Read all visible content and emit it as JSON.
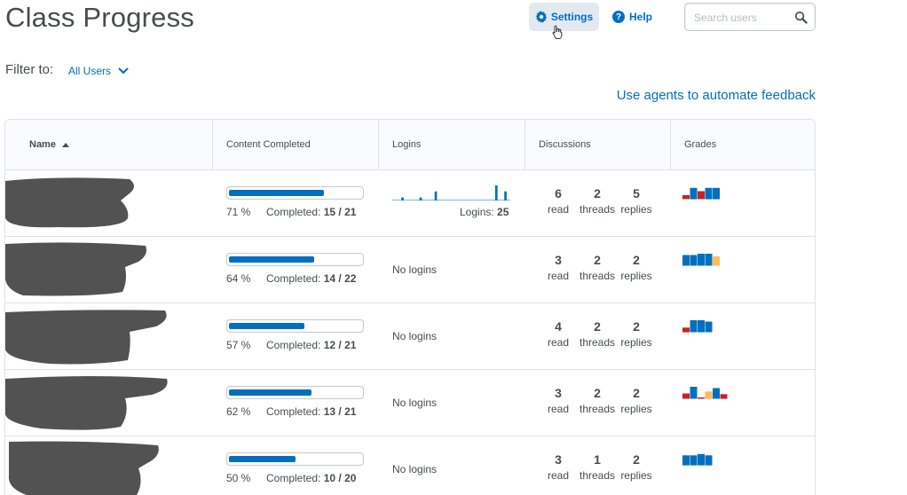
{
  "header": {
    "title": "Class Progress",
    "settings_label": "Settings",
    "help_label": "Help",
    "search_placeholder": "Search users"
  },
  "filter": {
    "label": "Filter to:",
    "value": "All Users"
  },
  "agents_link": "Use agents to automate feedback",
  "table": {
    "columns": [
      "Name",
      "Content Completed",
      "Logins",
      "Discussions",
      "Grades"
    ],
    "completed_label": "Completed:",
    "logins_label": "Logins:",
    "no_logins_label": "No logins",
    "disc_labels": [
      "read",
      "threads",
      "replies"
    ],
    "rows": [
      {
        "progress_fraction": 0.71,
        "percent": "71 %",
        "completed": "15 / 21",
        "logins": "25",
        "has_logins": true,
        "sparkline": [
          0,
          0,
          0,
          1,
          0,
          0,
          0,
          0,
          0,
          1,
          0,
          0,
          0,
          0,
          3,
          0,
          0,
          0,
          0,
          0,
          0,
          0,
          0,
          0,
          0,
          0,
          0,
          0,
          0,
          0,
          0,
          0,
          0,
          0,
          5,
          0,
          0,
          3,
          0
        ],
        "read": "6",
        "threads": "2",
        "replies": "5",
        "grades": [
          {
            "h": 0.3,
            "c": "#cd2026"
          },
          {
            "h": 0.85,
            "c": "#006fbf"
          },
          {
            "h": 0.6,
            "c": "#cd2026"
          },
          {
            "h": 0.85,
            "c": "#006fbf"
          },
          {
            "h": 0.85,
            "c": "#006fbf"
          }
        ]
      },
      {
        "progress_fraction": 0.64,
        "percent": "64 %",
        "completed": "14 / 22",
        "logins": "",
        "has_logins": false,
        "sparkline": [],
        "read": "3",
        "threads": "2",
        "replies": "2",
        "grades": [
          {
            "h": 0.8,
            "c": "#006fbf"
          },
          {
            "h": 0.8,
            "c": "#006fbf"
          },
          {
            "h": 0.9,
            "c": "#006fbf"
          },
          {
            "h": 0.9,
            "c": "#006fbf"
          },
          {
            "h": 0.7,
            "c": "#ffba59"
          }
        ]
      },
      {
        "progress_fraction": 0.57,
        "percent": "57 %",
        "completed": "12 / 21",
        "logins": "",
        "has_logins": false,
        "sparkline": [],
        "read": "4",
        "threads": "2",
        "replies": "2",
        "grades": [
          {
            "h": 0.35,
            "c": "#cd2026"
          },
          {
            "h": 0.9,
            "c": "#006fbf"
          },
          {
            "h": 0.9,
            "c": "#006fbf"
          },
          {
            "h": 0.8,
            "c": "#006fbf"
          }
        ]
      },
      {
        "progress_fraction": 0.62,
        "percent": "62 %",
        "completed": "13 / 21",
        "logins": "",
        "has_logins": false,
        "sparkline": [],
        "read": "3",
        "threads": "2",
        "replies": "2",
        "grades": [
          {
            "h": 0.4,
            "c": "#cd2026"
          },
          {
            "h": 0.9,
            "c": "#006fbf"
          },
          {
            "h": 0.05,
            "c": "#cd2026"
          },
          {
            "h": 0.55,
            "c": "#ffba59"
          },
          {
            "h": 0.8,
            "c": "#006fbf"
          },
          {
            "h": 0.35,
            "c": "#cd2026"
          }
        ]
      },
      {
        "progress_fraction": 0.5,
        "percent": "50 %",
        "completed": "10 / 20",
        "logins": "",
        "has_logins": false,
        "sparkline": [],
        "read": "3",
        "threads": "1",
        "replies": "2",
        "grades": [
          {
            "h": 0.75,
            "c": "#006fbf"
          },
          {
            "h": 0.75,
            "c": "#006fbf"
          },
          {
            "h": 0.85,
            "c": "#006fbf"
          },
          {
            "h": 0.75,
            "c": "#006fbf"
          }
        ]
      }
    ]
  },
  "colors": {
    "accent": "#006fbf",
    "text": "#494c4e",
    "header_bg": "#f9fbff",
    "settings_bg": "#e3e9f1"
  }
}
